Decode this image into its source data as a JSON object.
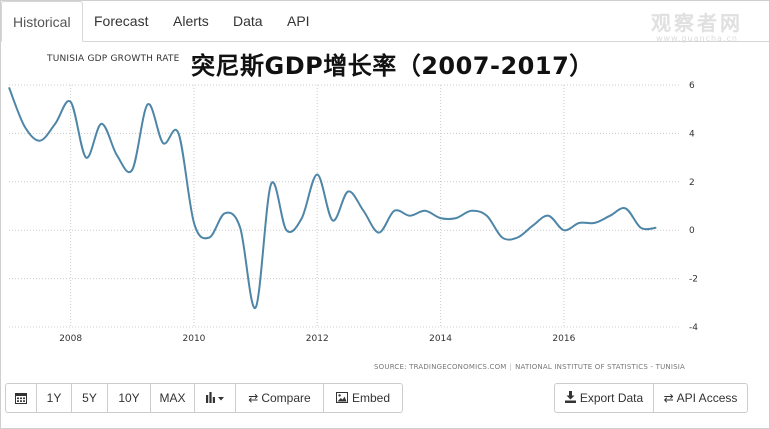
{
  "tabs": [
    {
      "label": "Historical",
      "active": true
    },
    {
      "label": "Forecast",
      "active": false
    },
    {
      "label": "Alerts",
      "active": false
    },
    {
      "label": "Data",
      "active": false
    },
    {
      "label": "API",
      "active": false
    }
  ],
  "watermark": {
    "main": "观察者网",
    "sub": "www.guancha.cn"
  },
  "overlay_title": "突尼斯GDP增长率（2007-2017）",
  "source": {
    "left": "SOURCE: TRADINGECONOMICS.COM",
    "right": "NATIONAL INSTITUTE OF STATISTICS - TUNISIA"
  },
  "toolbar": {
    "ranges": [
      "1Y",
      "5Y",
      "10Y",
      "MAX"
    ],
    "compare_label": "Compare",
    "embed_label": "Embed",
    "export_label": "Export Data",
    "api_label": "API Access"
  },
  "colors": {
    "line": "#4e86a8",
    "grid": "#cccccc"
  },
  "chart_data": {
    "type": "line",
    "title": "TUNISIA GDP GROWTH RATE",
    "xlabel": "",
    "ylabel": "",
    "ylim": [
      -4,
      6
    ],
    "xlim": [
      2007.0,
      2017.9
    ],
    "y_ticks": [
      6,
      4,
      2,
      0,
      -2,
      -4
    ],
    "x_ticks": [
      2008,
      2010,
      2012,
      2014,
      2016
    ],
    "grid": true,
    "series": [
      {
        "name": "",
        "x": [
          2007.0,
          2007.25,
          2007.5,
          2007.75,
          2008.0,
          2008.25,
          2008.5,
          2008.75,
          2009.0,
          2009.25,
          2009.5,
          2009.75,
          2010.0,
          2010.25,
          2010.5,
          2010.75,
          2011.0,
          2011.25,
          2011.5,
          2011.75,
          2012.0,
          2012.25,
          2012.5,
          2012.75,
          2013.0,
          2013.25,
          2013.5,
          2013.75,
          2014.0,
          2014.25,
          2014.5,
          2014.75,
          2015.0,
          2015.25,
          2015.5,
          2015.75,
          2016.0,
          2016.25,
          2016.5,
          2016.75,
          2017.0,
          2017.25,
          2017.5
        ],
        "y": [
          5.9,
          4.3,
          3.7,
          4.4,
          5.3,
          3.0,
          4.4,
          3.1,
          2.5,
          5.2,
          3.6,
          4.0,
          0.3,
          -0.3,
          0.7,
          0.1,
          -3.2,
          1.9,
          0.0,
          0.5,
          2.3,
          0.4,
          1.6,
          0.8,
          -0.1,
          0.8,
          0.6,
          0.8,
          0.5,
          0.5,
          0.8,
          0.6,
          -0.3,
          -0.3,
          0.2,
          0.6,
          0.0,
          0.3,
          0.3,
          0.6,
          0.9,
          0.1,
          0.1
        ]
      }
    ]
  }
}
